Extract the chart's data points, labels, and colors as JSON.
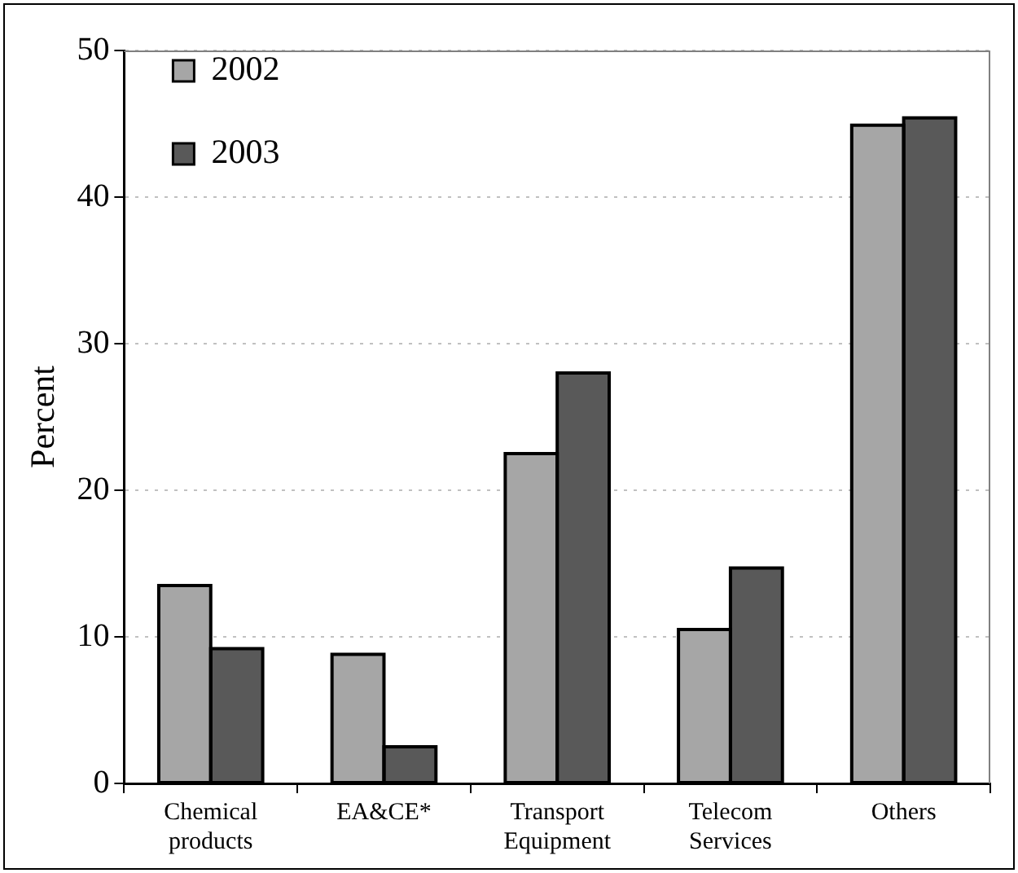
{
  "chart_data": {
    "type": "bar",
    "ylabel": "Percent",
    "categories": [
      "Chemical products",
      "EA&CE*",
      "Transport Equipment",
      "Telecom Services",
      "Others"
    ],
    "series": [
      {
        "name": "2002",
        "color": "#a6a6a6",
        "values": [
          13.5,
          8.8,
          22.5,
          10.5,
          44.9
        ]
      },
      {
        "name": "2003",
        "color": "#595959",
        "values": [
          9.2,
          2.5,
          28.0,
          14.7,
          45.4
        ]
      }
    ],
    "ylim": [
      0,
      50
    ],
    "yticks": [
      0,
      10,
      20,
      30,
      40,
      50
    ],
    "grid": "y",
    "legend": "top left"
  }
}
